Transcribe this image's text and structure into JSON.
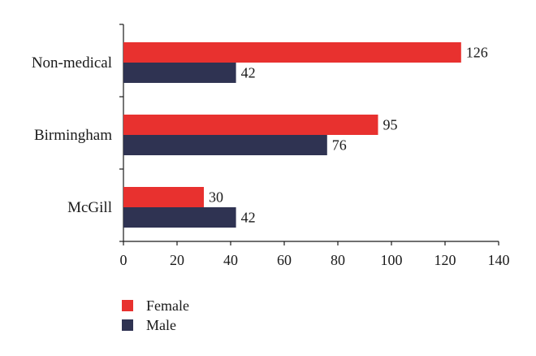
{
  "chart_data": {
    "type": "bar",
    "orientation": "horizontal",
    "categories": [
      "Non-medical",
      "Birmingham",
      "McGill"
    ],
    "series": [
      {
        "name": "Female",
        "values": [
          126,
          95,
          30
        ],
        "color": "#e8312f"
      },
      {
        "name": "Male",
        "values": [
          42,
          76,
          42
        ],
        "color": "#2f3352"
      }
    ],
    "xlim": [
      0,
      140
    ],
    "xticks": [
      0,
      20,
      40,
      60,
      80,
      100,
      120,
      140
    ],
    "grid": false,
    "legend_position": "bottom-left",
    "title": "",
    "xlabel": "",
    "ylabel": ""
  },
  "legend": {
    "female_label": "Female",
    "male_label": "Male"
  }
}
